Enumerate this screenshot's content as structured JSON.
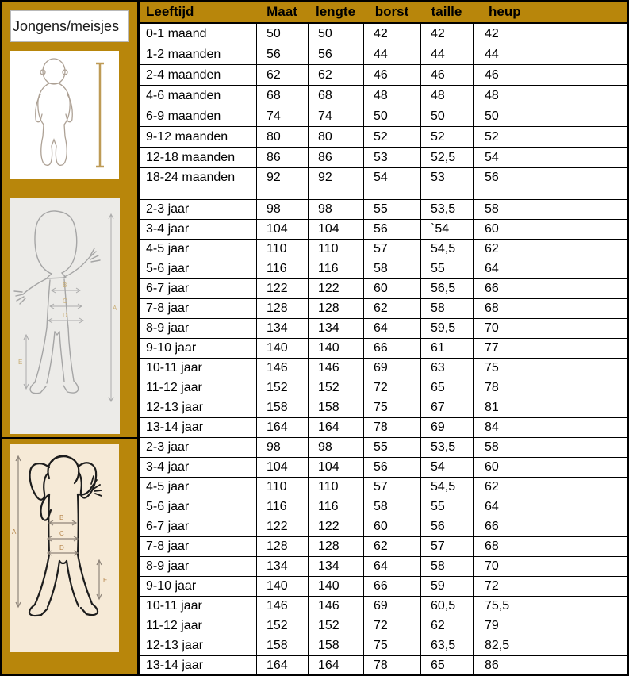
{
  "colors": {
    "accent_gold": "#B8860B",
    "grid_line": "#000000",
    "boy_panel_bg": "#ECEBE8",
    "girl_panel_bg": "#F6EAD7",
    "measure_tape": "#BE9B56"
  },
  "sidebar": {
    "label": "Jongens/meisjes",
    "figures": {
      "baby": {
        "name": "baby-figure"
      },
      "boy": {
        "name": "boy-figure",
        "labels": [
          "A",
          "B",
          "C",
          "D",
          "E"
        ]
      },
      "girl": {
        "name": "girl-figure",
        "labels": [
          "A",
          "B",
          "C",
          "D",
          "E"
        ]
      }
    }
  },
  "table": {
    "headers": [
      "Leeftijd",
      "Maat",
      "lengte",
      "borst",
      "taille",
      "heup"
    ],
    "sections": [
      {
        "name": "baby-months",
        "rows": [
          [
            "0-1 maand",
            "50",
            "50",
            "42",
            "42",
            "42"
          ],
          [
            "1-2 maanden",
            "56",
            "56",
            "44",
            "44",
            "44"
          ],
          [
            "2-4 maanden",
            "62",
            "62",
            "46",
            "46",
            "46"
          ],
          [
            "4-6 maanden",
            "68",
            "68",
            "48",
            "48",
            "48"
          ],
          [
            "6-9 maanden",
            "74",
            "74",
            "50",
            "50",
            "50"
          ],
          [
            "9-12 maanden",
            "80",
            "80",
            "52",
            "52",
            "52"
          ],
          [
            "12-18 maanden",
            "86",
            "86",
            "53",
            "52,5",
            "54"
          ],
          [
            "18-24 maanden",
            "92",
            "92",
            "54",
            "53",
            "56"
          ]
        ]
      },
      {
        "name": "boys-years",
        "rows": [
          [
            "2-3 jaar",
            "98",
            "98",
            "55",
            "53,5",
            "58"
          ],
          [
            "3-4 jaar",
            "104",
            "104",
            "56",
            "`54",
            "60"
          ],
          [
            "4-5 jaar",
            "110",
            "110",
            "57",
            "54,5",
            "62"
          ],
          [
            "5-6 jaar",
            "116",
            "116",
            "58",
            "55",
            "64"
          ],
          [
            "6-7 jaar",
            "122",
            "122",
            "60",
            "56,5",
            "66"
          ],
          [
            "7-8 jaar",
            "128",
            "128",
            "62",
            "58",
            "68"
          ],
          [
            "8-9 jaar",
            "134",
            "134",
            "64",
            "59,5",
            "70"
          ],
          [
            "9-10 jaar",
            "140",
            "140",
            "66",
            "61",
            "77"
          ],
          [
            "10-11 jaar",
            "146",
            "146",
            "69",
            "63",
            "75"
          ],
          [
            "11-12 jaar",
            "152",
            "152",
            "72",
            "65",
            "78"
          ],
          [
            "12-13 jaar",
            "158",
            "158",
            "75",
            "67",
            "81"
          ],
          [
            "13-14 jaar",
            "164",
            "164",
            "78",
            "69",
            "84"
          ]
        ]
      },
      {
        "name": "girls-years",
        "rows": [
          [
            "2-3 jaar",
            "98",
            "98",
            "55",
            "53,5",
            "58"
          ],
          [
            "3-4 jaar",
            "104",
            "104",
            "56",
            "54",
            "60"
          ],
          [
            "4-5 jaar",
            "110",
            "110",
            "57",
            "54,5",
            "62"
          ],
          [
            "5-6 jaar",
            "116",
            "116",
            "58",
            "55",
            "64"
          ],
          [
            "6-7 jaar",
            "122",
            "122",
            "60",
            "56",
            "66"
          ],
          [
            "7-8 jaar",
            "128",
            "128",
            "62",
            "57",
            "68"
          ],
          [
            "8-9 jaar",
            "134",
            "134",
            "64",
            "58",
            "70"
          ],
          [
            "9-10 jaar",
            "140",
            "140",
            "66",
            "59",
            "72"
          ],
          [
            "10-11 jaar",
            "146",
            "146",
            "69",
            "60,5",
            "75,5"
          ],
          [
            "11-12 jaar",
            "152",
            "152",
            "72",
            "62",
            "79"
          ],
          [
            "12-13 jaar",
            "158",
            "158",
            "75",
            "63,5",
            "82,5"
          ],
          [
            "13-14 jaar",
            "164",
            "164",
            "78",
            "65",
            "86"
          ]
        ]
      }
    ]
  }
}
